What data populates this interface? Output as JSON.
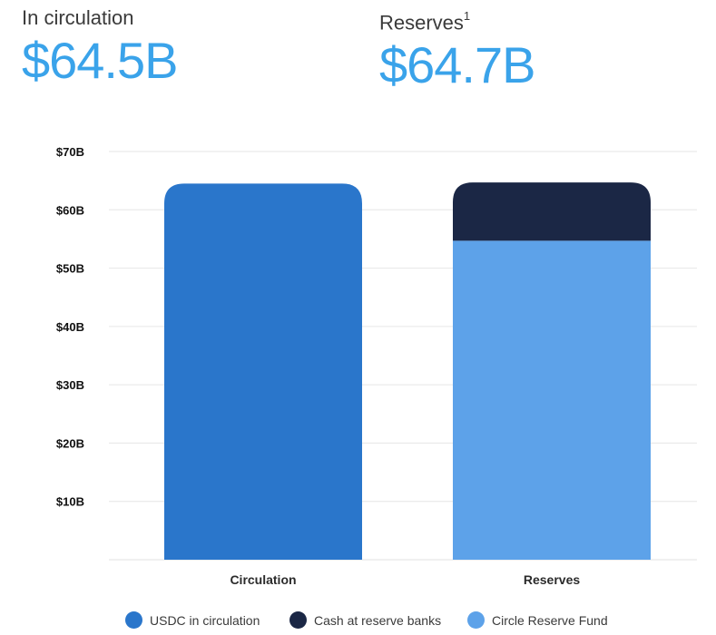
{
  "header": {
    "circulation_label": "In circulation",
    "circulation_value": "$64.5B",
    "reserves_label": "Reserves",
    "reserves_footnote": "1",
    "reserves_value": "$64.7B"
  },
  "chart_data": {
    "type": "bar",
    "stacked": true,
    "categories": [
      "Circulation",
      "Reserves"
    ],
    "series": [
      {
        "name": "USDC in circulation",
        "values": [
          64.5,
          0
        ],
        "color": "#2a76cb"
      },
      {
        "name": "Circle Reserve Fund",
        "values": [
          0,
          54.7
        ],
        "color": "#5da2e9"
      },
      {
        "name": "Cash at reserve banks",
        "values": [
          0,
          10.0
        ],
        "color": "#1b2745"
      }
    ],
    "ylim": [
      0,
      70
    ],
    "yticks": [
      10,
      20,
      30,
      40,
      50,
      60,
      70
    ],
    "ytick_labels": [
      "$10B",
      "$20B",
      "$30B",
      "$40B",
      "$50B",
      "$60B",
      "$70B"
    ],
    "grid": true,
    "legend_position": "bottom",
    "legend": [
      {
        "name": "USDC in circulation",
        "color": "#2a76cb"
      },
      {
        "name": "Cash at reserve banks",
        "color": "#1b2745"
      },
      {
        "name": "Circle Reserve Fund",
        "color": "#5da2e9"
      }
    ]
  }
}
